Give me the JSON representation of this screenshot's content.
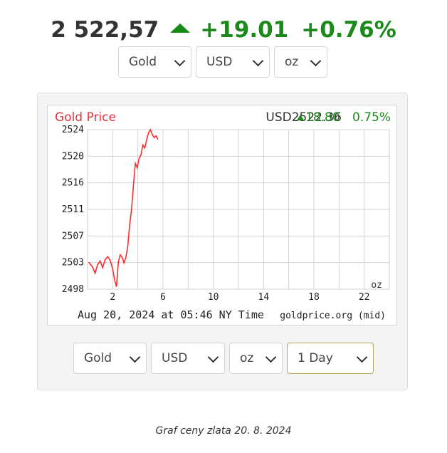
{
  "header": {
    "price": "2 522,57",
    "change": "+19.01",
    "change_percent": "+0.76%",
    "direction": "up"
  },
  "top_selectors": {
    "metal": "Gold",
    "currency": "USD",
    "unit": "oz"
  },
  "chart": {
    "title": "Gold Price",
    "quote_currency_price": "USD2522.36",
    "quote_change": "18.80",
    "quote_change_percent": "0.75%",
    "unit_label": "oz",
    "timestamp": "Aug 20, 2024 at 05:46 NY Time",
    "source": "goldprice.org (mid)"
  },
  "bottom_selectors": {
    "metal": "Gold",
    "currency": "USD",
    "unit": "oz",
    "period": "1 Day"
  },
  "caption": "Graf ceny zlata 20. 8. 2024",
  "colors": {
    "up": "#1b8a1b",
    "title_red": "#e8323c",
    "line": "#ff2a2a"
  },
  "chart_data": {
    "type": "line",
    "title": "Gold Price",
    "xlabel": "",
    "ylabel": "",
    "x_ticks": [
      "2",
      "6",
      "10",
      "14",
      "18",
      "22"
    ],
    "y_ticks": [
      "2498",
      "2503",
      "2507",
      "2511",
      "2516",
      "2520",
      "2524"
    ],
    "xlim": [
      0,
      24
    ],
    "ylim": [
      2498,
      2524
    ],
    "grid": true,
    "series": [
      {
        "x": [
          0.1,
          0.4,
          0.6,
          0.8,
          1.0,
          1.2,
          1.4,
          1.6,
          1.8,
          2.0,
          2.15,
          2.3,
          2.45,
          2.6,
          2.75,
          2.9,
          3.05,
          3.2,
          3.35,
          3.5,
          3.65,
          3.8,
          3.95,
          4.1,
          4.25,
          4.4,
          4.55,
          4.7,
          4.85,
          5.0,
          5.15,
          5.3,
          5.45,
          5.6
        ],
        "y": [
          2502.4,
          2501.6,
          2500.6,
          2502.0,
          2502.6,
          2501.5,
          2502.8,
          2503.3,
          2502.7,
          2501.3,
          2499.5,
          2498.4,
          2502.4,
          2503.6,
          2503.2,
          2502.3,
          2503.2,
          2505.0,
          2508.5,
          2511.0,
          2515.0,
          2518.5,
          2517.8,
          2519.3,
          2519.9,
          2521.5,
          2521.0,
          2522.3,
          2523.5,
          2524.0,
          2523.2,
          2522.7,
          2523.0,
          2522.4
        ]
      }
    ]
  }
}
